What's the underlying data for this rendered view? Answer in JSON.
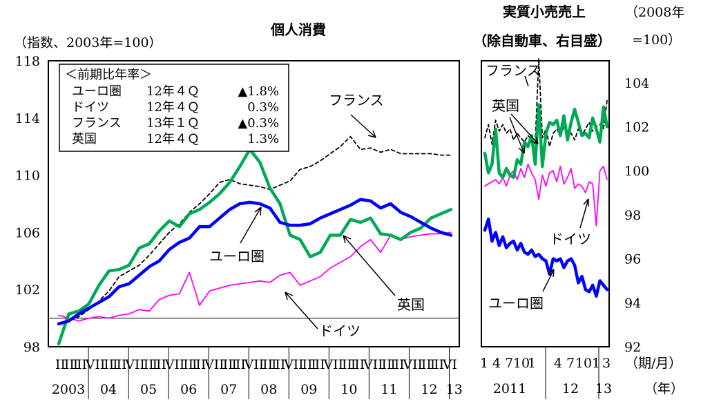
{
  "chart_data": [
    {
      "type": "line",
      "title": "個人消費",
      "ylabel": "（指数、2003年=100）",
      "ylim": [
        98,
        118
      ],
      "yticks": [
        "98",
        "102",
        "106",
        "110",
        "114",
        "118"
      ],
      "x_quarter_row": "ⅠⅡⅢⅣⅠⅡⅢⅣⅠⅡⅢⅣⅠⅡⅢⅣⅠⅡⅢⅣⅠⅡⅢⅣⅠⅡⅢⅣⅠⅡⅢⅣⅠⅡⅢⅣⅠⅡⅢⅣⅠ",
      "x_year_labels": [
        "2003",
        "04",
        "05",
        "06",
        "07",
        "08",
        "09",
        "10",
        "11",
        "12",
        "13"
      ],
      "reference_line": 100,
      "legend_box": {
        "header": "＜前期比年率＞",
        "rows": [
          {
            "name": "ユーロ圏",
            "period": "12年４Ｑ",
            "value": "▲1.8%"
          },
          {
            "name": "ドイツ",
            "period": "12年４Ｑ",
            "value": "0.3%"
          },
          {
            "name": "フランス",
            "period": "13年１Ｑ",
            "value": "▲0.3%"
          },
          {
            "name": "英国",
            "period": "12年４Ｑ",
            "value": "1.3%"
          }
        ]
      },
      "annotations": [
        "フランス",
        "ユーロ圏",
        "英国",
        "ドイツ"
      ],
      "series": [
        {
          "name": "ユーロ圏",
          "color": "#0000ff",
          "style": "thick-solid",
          "values": [
            99.6,
            99.8,
            100.3,
            100.7,
            101.1,
            101.5,
            102.2,
            102.4,
            103.0,
            103.6,
            104.0,
            104.8,
            105.3,
            105.6,
            106.4,
            106.4,
            107.0,
            107.6,
            108.0,
            108.1,
            108.0,
            107.7,
            106.7,
            106.5,
            106.5,
            106.6,
            107.0,
            107.3,
            107.6,
            107.9,
            108.3,
            108.2,
            107.7,
            108.0,
            107.4,
            107.1,
            106.7,
            106.3,
            106.0,
            105.8
          ]
        },
        {
          "name": "ドイツ",
          "color": "#ff00ff",
          "style": "solid",
          "values": [
            100.2,
            100.0,
            99.8,
            100.0,
            100.1,
            100.0,
            100.2,
            100.3,
            100.6,
            100.5,
            101.3,
            101.6,
            101.7,
            103.2,
            100.9,
            101.9,
            102.1,
            102.3,
            102.4,
            102.5,
            102.6,
            102.5,
            103.0,
            103.2,
            102.3,
            102.6,
            102.9,
            103.5,
            103.9,
            104.3,
            105.0,
            105.5,
            104.6,
            105.8,
            105.5,
            105.7,
            105.8,
            105.9,
            105.9,
            106.0
          ]
        },
        {
          "name": "フランス",
          "color": "#000000",
          "style": "dashed",
          "values": [
            99.6,
            99.8,
            100.1,
            100.6,
            101.2,
            101.9,
            102.9,
            103.3,
            103.7,
            104.4,
            105.2,
            106.0,
            106.6,
            107.4,
            108.0,
            108.7,
            109.5,
            109.7,
            109.4,
            109.3,
            109.2,
            109.0,
            109.3,
            109.6,
            110.4,
            110.6,
            111.0,
            111.5,
            112.0,
            112.7,
            111.8,
            111.9,
            111.6,
            111.8,
            111.5,
            111.5,
            111.5,
            111.5,
            111.4,
            111.4
          ]
        },
        {
          "name": "英国",
          "color": "#00aa55",
          "style": "thick-solid",
          "values": [
            98.2,
            100.3,
            100.5,
            101.0,
            102.3,
            103.3,
            103.4,
            103.7,
            104.9,
            105.2,
            106.1,
            106.8,
            106.4,
            107.3,
            107.6,
            108.1,
            108.7,
            109.5,
            110.6,
            111.8,
            110.9,
            109.1,
            108.0,
            105.8,
            105.5,
            104.3,
            104.6,
            105.8,
            105.8,
            106.9,
            106.7,
            107.0,
            105.9,
            105.8,
            105.5,
            106.0,
            106.3,
            107.0,
            107.3,
            107.6
          ]
        }
      ]
    },
    {
      "type": "line",
      "title": "実質小売売上",
      "subtitle": "（除自動車、右目盛）",
      "ylabel": "（2008年=100）",
      "ylim": [
        92,
        105
      ],
      "yticks": [
        "92",
        "94",
        "96",
        "98",
        "100",
        "102",
        "104"
      ],
      "x_month_labels": [
        "1",
        "4",
        "7",
        "10",
        "1",
        "4",
        "7",
        "10",
        "1",
        "3"
      ],
      "x_year_labels": [
        "2011",
        "12",
        "13"
      ],
      "x_unit_labels": [
        "（期/月）",
        "（年）"
      ],
      "annotations": [
        "フランス",
        "英国",
        "ドイツ",
        "ユーロ圏"
      ],
      "series": [
        {
          "name": "ユーロ圏",
          "color": "#0000ff",
          "style": "thick-solid",
          "values": [
            97.3,
            97.8,
            96.8,
            97.2,
            96.6,
            97.0,
            96.5,
            96.7,
            96.8,
            96.4,
            96.7,
            96.3,
            96.2,
            96.4,
            96.1,
            96.2,
            96.0,
            95.9,
            95.3,
            96.0,
            95.9,
            96.0,
            95.6,
            95.9,
            96.0,
            95.7,
            94.9,
            95.2,
            94.6,
            94.5,
            94.8,
            94.3,
            95.0,
            94.8,
            94.6
          ]
        },
        {
          "name": "ドイツ",
          "color": "#ff00ff",
          "style": "solid",
          "values": [
            99.3,
            99.4,
            99.5,
            99.6,
            99.4,
            99.7,
            99.3,
            99.8,
            100.0,
            99.6,
            100.1,
            99.7,
            100.3,
            99.9,
            99.6,
            98.7,
            99.8,
            99.3,
            99.9,
            100.0,
            99.5,
            100.2,
            99.4,
            99.7,
            100.1,
            99.2,
            99.4,
            99.3,
            99.0,
            99.5,
            99.4,
            97.5,
            100.0,
            100.2,
            99.6
          ]
        },
        {
          "name": "フランス",
          "color": "#000000",
          "style": "dashed",
          "values": [
            101.5,
            102.1,
            101.2,
            102.3,
            101.8,
            102.1,
            101.7,
            101.9,
            101.4,
            101.7,
            101.5,
            101.3,
            101.6,
            101.4,
            101.2,
            105.1,
            101.5,
            101.9,
            101.1,
            101.7,
            101.9,
            101.6,
            102.0,
            101.8,
            101.7,
            101.4,
            101.9,
            101.6,
            101.9,
            102.2,
            101.8,
            102.0,
            102.1,
            101.9,
            103.2
          ]
        },
        {
          "name": "英国",
          "color": "#00aa55",
          "style": "thick-solid",
          "values": [
            100.8,
            99.9,
            100.3,
            101.9,
            99.9,
            99.7,
            100.1,
            99.8,
            99.7,
            100.5,
            100.3,
            101.3,
            101.1,
            101.6,
            100.3,
            103.0,
            100.2,
            101.7,
            102.2,
            102.1,
            102.3,
            101.6,
            102.5,
            101.4,
            102.2,
            102.8,
            102.2,
            101.6,
            101.7,
            101.5,
            102.4,
            101.9,
            101.3,
            102.9,
            102.0
          ]
        }
      ]
    }
  ]
}
